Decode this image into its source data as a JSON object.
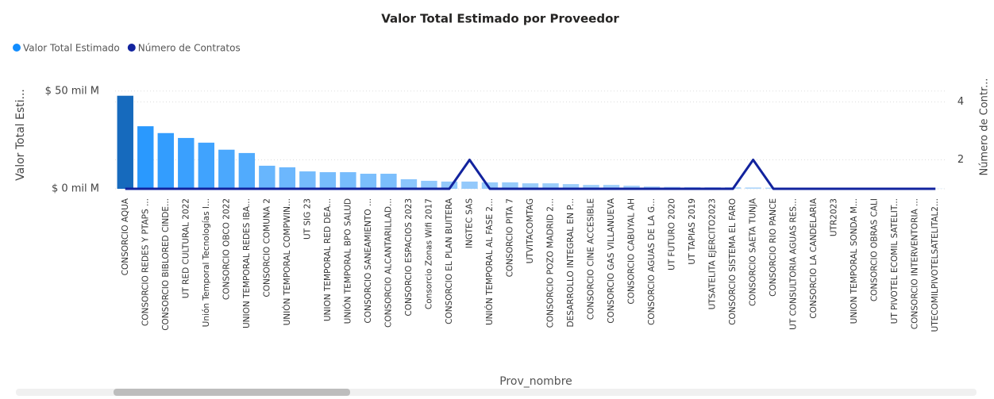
{
  "chart_data": {
    "type": "combo",
    "title": "Valor Total Estimado por Proveedor",
    "x_label": "Prov_nombre",
    "y_label": "Valor Total Esti...",
    "y2_label": "Número de Contr...",
    "legend": "top-left",
    "categories": [
      "CONSORCIO AQUA",
      "CONSORCIO REDES Y PTAPS ...",
      "CONSORCIO BIBLORED CINDE...",
      "UT RED CULTURAL 2022",
      "Unión Temporal Tecnologías I...",
      "CONSORCIO OBCO 2022",
      "UNION TEMPORAL REDES IBA...",
      "CONSORCIO COMUNA 2",
      "UNIÓN TEMPORAL COMPWIN...",
      "UT SIG 23",
      "UNION TEMPORAL RED DEA...",
      "UNIÓN TEMPORAL BPO SALUD",
      "CONSORCIO SANEAMIENTO ...",
      "CONSORCIO ALCANTARILLAD...",
      "CONSORCIO ESPACIOS 2023",
      "Consorcio Zonas Wifi 2017",
      "CONSORCIO EL PLAN BUITERA",
      "INGTEC SAS",
      "UNIÓN TEMPORAL AL FASE 2...",
      "CONSORCIO PITA 7",
      "UTVITACOMTAG",
      "CONSORCIO POZO MADRID 2...",
      "DESARROLLO INTEGRAL EN P...",
      "CONSORCIO CINE ACCESIBLE",
      "CONSORCIO GAS VILLANUEVA",
      "CONSORCIO CABUYAL AH",
      "CONSORCIO AGUAS DE LA G...",
      "UT FUTURO 2020",
      "UT TAPIAS 2019",
      "UTSATELITA EJERCITO2023",
      "CONSORCIO SISTEMA EL FARO",
      "CONSORCIO SAETA TUNJA",
      "CONSORCIO RIO PANCE",
      "UT CONSULTORIA AGUAS RES...",
      "CONSORCIO LA CANDELARIA",
      "UTR2023",
      "UNION TEMPORAL SONDA M...",
      "CONSORCIO OBRAS CALI",
      "UT PIVOTEL ECOMIL SATELIT...",
      "CONSORCIO INTERVENTORIA ...",
      "UTECOMILPIVOTELSATELITAL2..."
    ],
    "series": [
      {
        "name": "Valor Total Estimado",
        "color": "#118dff",
        "type": "bar",
        "values": [
          47.6,
          32,
          28.5,
          26,
          23.6,
          20,
          18.3,
          11.8,
          11,
          8.9,
          8.5,
          8.5,
          7.7,
          7.7,
          4.9,
          4.1,
          3.7,
          3.7,
          3.3,
          3.3,
          2.8,
          2.8,
          2.4,
          2,
          2,
          1.6,
          1.2,
          1,
          0.9,
          0.8,
          0.8,
          0.7,
          0.6,
          0.5,
          0.4,
          0.4,
          0.3,
          0.3,
          0.2,
          0.2,
          0.1
        ]
      },
      {
        "name": "Número de Contratos",
        "color": "#12239e",
        "type": "line",
        "axis": "y2",
        "values": [
          1,
          1,
          1,
          1,
          1,
          1,
          1,
          1,
          1,
          1,
          1,
          1,
          1,
          1,
          1,
          1,
          1,
          2,
          1,
          1,
          1,
          1,
          1,
          1,
          1,
          1,
          1,
          1,
          1,
          1,
          1,
          2,
          1,
          1,
          1,
          1,
          1,
          1,
          1,
          1,
          1
        ]
      }
    ],
    "ylim": [
      0,
      56
    ],
    "yticks": [
      {
        "value": 0,
        "label": "$ 0 mil M"
      },
      {
        "value": 50,
        "label": "$ 50 mil M"
      }
    ],
    "y2lim": [
      1,
      4.78
    ],
    "y2ticks": [
      2,
      4
    ],
    "grid": true
  }
}
